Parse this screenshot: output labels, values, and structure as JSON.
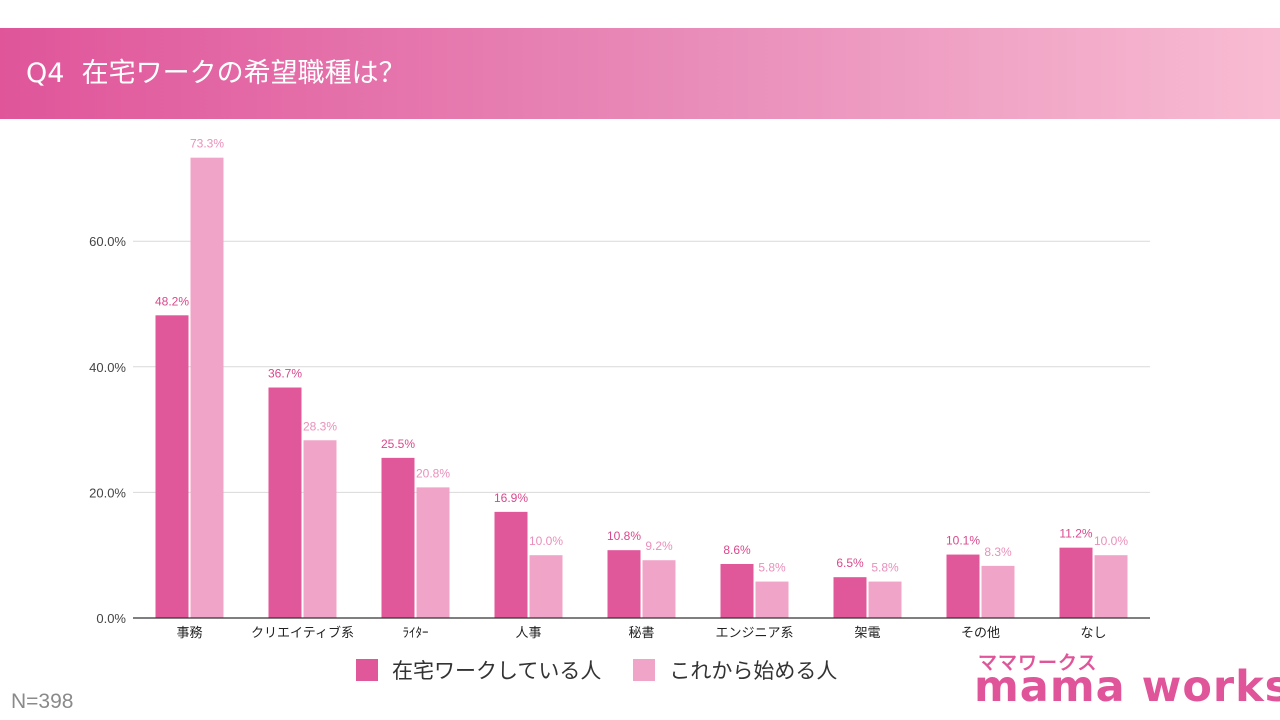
{
  "header": {
    "title": "Q4  在宅ワークの希望職種は？"
  },
  "colors": {
    "series1": "#e0579a",
    "series2": "#f0a4c7",
    "grid": "#d9d9d9",
    "axis": "#333333"
  },
  "chart_data": {
    "type": "bar",
    "categories": [
      "事務",
      "クリエイティブ系",
      "ﾗｲﾀｰ",
      "人事",
      "秘書",
      "エンジニア系",
      "架電",
      "その他",
      "なし"
    ],
    "series": [
      {
        "name": "在宅ワークしている人",
        "values": [
          48.2,
          36.7,
          25.5,
          16.9,
          10.8,
          8.6,
          6.5,
          10.1,
          11.2
        ],
        "labels": [
          "48.2%",
          "36.7%",
          "25.5%",
          "16.9%",
          "10.8%",
          "8.6%",
          "6.5%",
          "10.1%",
          "11.2%"
        ]
      },
      {
        "name": "これから始める人",
        "values": [
          73.3,
          28.3,
          20.8,
          10.0,
          9.2,
          5.8,
          5.8,
          8.3,
          10.0
        ],
        "labels": [
          "73.3%",
          "28.3%",
          "20.8%",
          "10.0%",
          "9.2%",
          "5.8%",
          "5.8%",
          "8.3%",
          "10.0%"
        ]
      }
    ],
    "ylim": [
      0,
      75
    ],
    "yticks": [
      0,
      20,
      40,
      60
    ],
    "ytick_labels": [
      "0.0%",
      "20.0%",
      "40.0%",
      "60.0%"
    ],
    "grid": true,
    "legend_placement": "bottom"
  },
  "footer": {
    "sample_size": "N=398"
  },
  "logo": {
    "kana": "ママワークス",
    "text": "mama works"
  }
}
